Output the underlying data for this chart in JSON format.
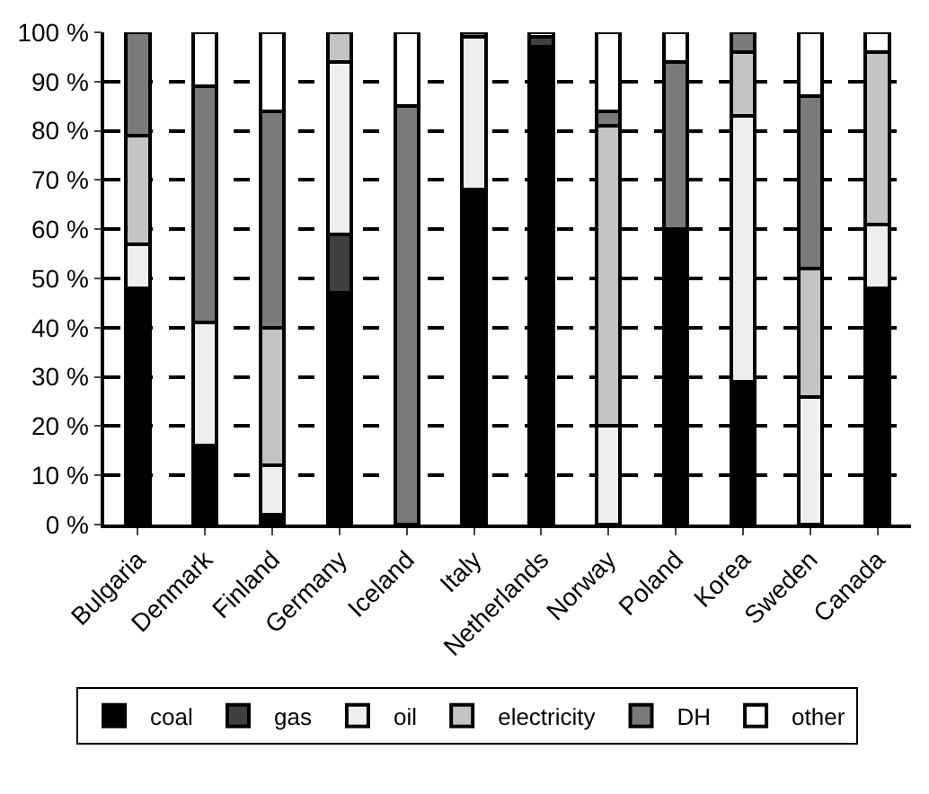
{
  "chart_data": {
    "type": "bar",
    "stacked": true,
    "categories": [
      "Bulgaria",
      "Denmark",
      "Finland",
      "Germany",
      "Iceland",
      "Italy",
      "Netherlands",
      "Norway",
      "Poland",
      "Korea",
      "Sweden",
      "Canada"
    ],
    "series": [
      {
        "name": "coal",
        "color": "#000000",
        "values": [
          48,
          16,
          2,
          47,
          0,
          68,
          97,
          0,
          60,
          29,
          0,
          48
        ]
      },
      {
        "name": "gas",
        "color": "#404040",
        "values": [
          0,
          0,
          0,
          12,
          0,
          0,
          2,
          0,
          0,
          0,
          0,
          0
        ]
      },
      {
        "name": "oil",
        "color": "#eeeeee",
        "values": [
          9,
          25,
          10,
          35,
          0,
          31,
          0,
          20,
          0,
          54,
          26,
          13
        ]
      },
      {
        "name": "electricity",
        "color": "#c4c4c4",
        "values": [
          22,
          0,
          28,
          6,
          0,
          0,
          0,
          61,
          0,
          13,
          26,
          35
        ]
      },
      {
        "name": "DH",
        "color": "#7a7a7a",
        "values": [
          21,
          48,
          44,
          0,
          85,
          1,
          0,
          3,
          34,
          4,
          35,
          0
        ]
      },
      {
        "name": "other",
        "color": "#ffffff",
        "values": [
          0,
          11,
          16,
          0,
          15,
          0,
          1,
          16,
          6,
          0,
          13,
          4
        ]
      }
    ],
    "ylim": [
      0,
      100
    ],
    "yticks": [
      {
        "value": 0,
        "label": "0 %"
      },
      {
        "value": 10,
        "label": "10 %"
      },
      {
        "value": 20,
        "label": "20 %"
      },
      {
        "value": 30,
        "label": "30 %"
      },
      {
        "value": 40,
        "label": "40 %"
      },
      {
        "value": 50,
        "label": "50 %"
      },
      {
        "value": 60,
        "label": "60 %"
      },
      {
        "value": 70,
        "label": "70 %"
      },
      {
        "value": 80,
        "label": "80 %"
      },
      {
        "value": 90,
        "label": "90 %"
      },
      {
        "value": 100,
        "label": "100 %"
      }
    ],
    "grid": "y",
    "legend": "bottom"
  }
}
